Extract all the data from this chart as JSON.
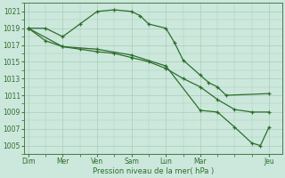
{
  "background_color": "#cce8dc",
  "grid_color": "#aaccb8",
  "line_color": "#2d6e2d",
  "marker_color": "#2d6e2d",
  "xlabel": "Pression niveau de la mer( hPa )",
  "ylim": [
    1004.0,
    1022.0
  ],
  "yticks": [
    1005,
    1007,
    1009,
    1011,
    1013,
    1015,
    1017,
    1019,
    1021
  ],
  "day_labels": [
    "Dim",
    "Mer",
    "Ven",
    "Sam",
    "Lun",
    "Mar",
    "Jeu"
  ],
  "day_positions": [
    0,
    4,
    8,
    12,
    16,
    20,
    28
  ],
  "xlim": [
    -0.5,
    29.5
  ],
  "series": [
    {
      "x": [
        0,
        2,
        4,
        6,
        8,
        10,
        12,
        13,
        14,
        16,
        17,
        18,
        20,
        21,
        22,
        23,
        28
      ],
      "y": [
        1019,
        1019,
        1018,
        1019.5,
        1021,
        1021.2,
        1021,
        1020.5,
        1019.5,
        1019,
        1017.3,
        1015.2,
        1013.4,
        1012.5,
        1012,
        1011,
        1011.2
      ]
    },
    {
      "x": [
        0,
        2,
        4,
        6,
        8,
        10,
        12,
        14,
        16,
        18,
        20,
        22,
        24,
        26,
        28
      ],
      "y": [
        1019,
        1017.5,
        1016.8,
        1016.5,
        1016.2,
        1016,
        1015.5,
        1015,
        1014.2,
        1013,
        1012,
        1010.5,
        1009.3,
        1009,
        1009
      ]
    },
    {
      "x": [
        0,
        4,
        8,
        12,
        16,
        20,
        22,
        24,
        26,
        27,
        28
      ],
      "y": [
        1019,
        1016.8,
        1016.5,
        1015.8,
        1014.5,
        1009.2,
        1009,
        1007.2,
        1005.3,
        1005.0,
        1007.2
      ]
    }
  ]
}
